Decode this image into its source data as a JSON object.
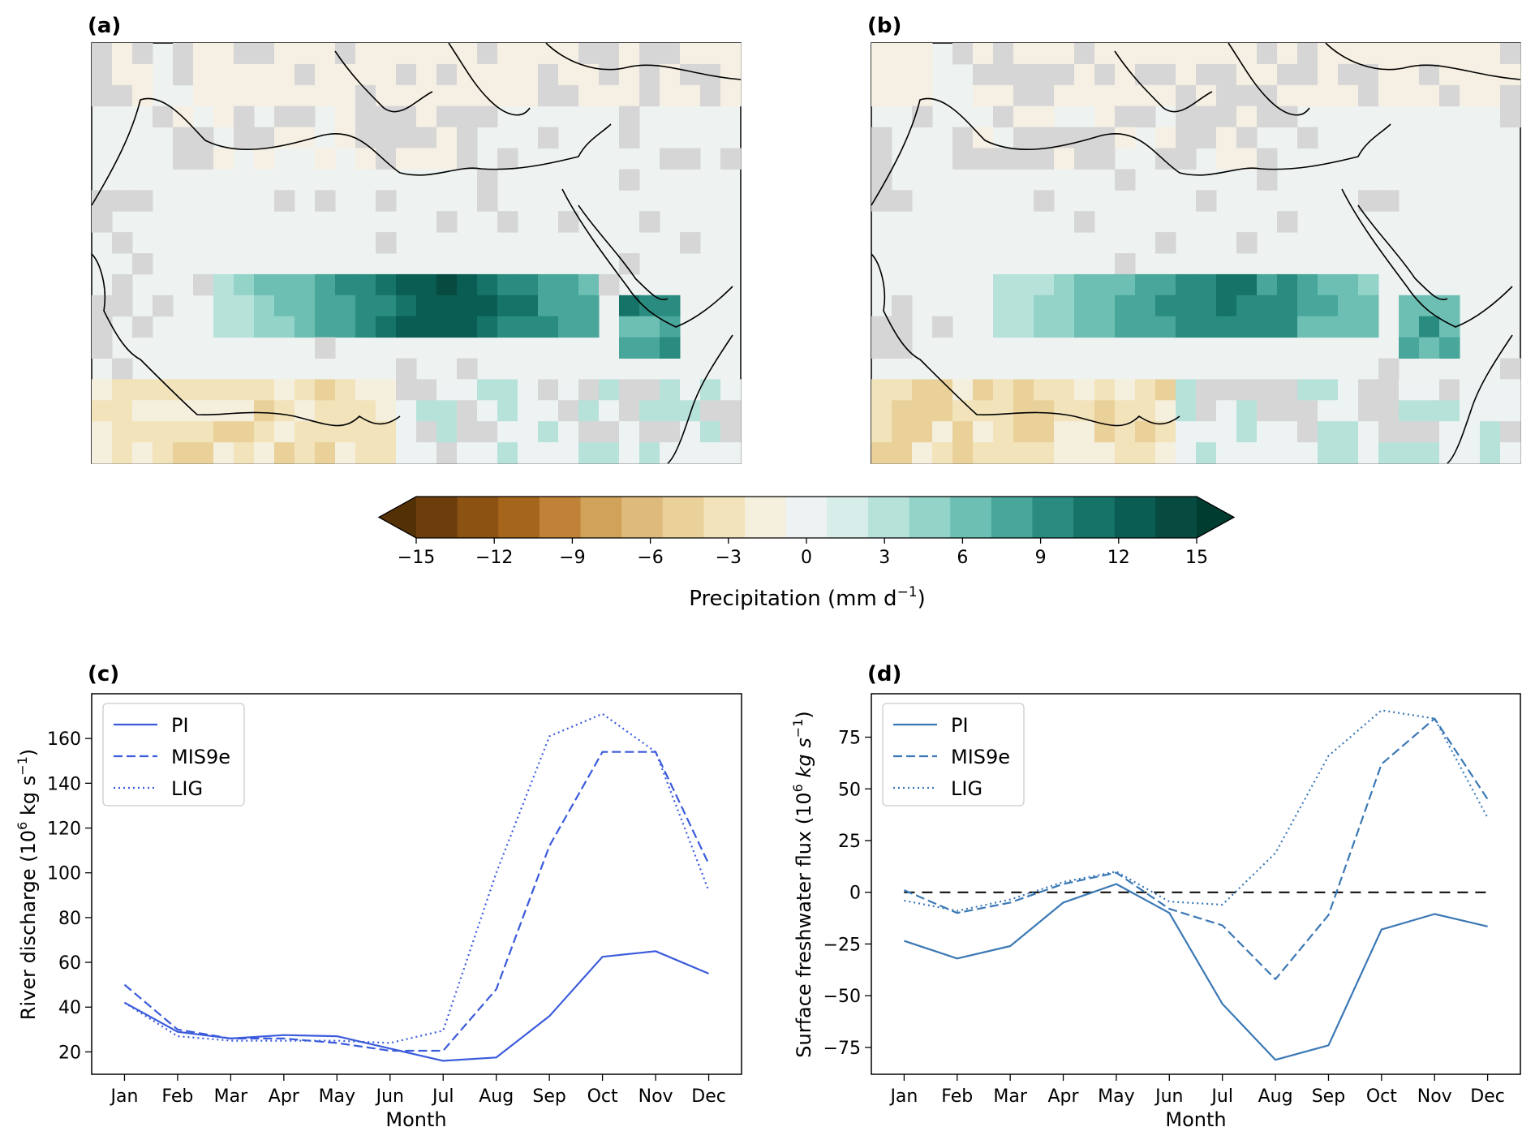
{
  "panels": {
    "a": {
      "label": "(a)"
    },
    "b": {
      "label": "(b)"
    },
    "c": {
      "label": "(c)"
    },
    "d": {
      "label": "(d)"
    }
  },
  "colorbar": {
    "label": "Precipitation (mm d",
    "label_sup": "−1",
    "label_close": ")",
    "ticks": [
      "−15",
      "−12",
      "−9",
      "−6",
      "−3",
      "0",
      "3",
      "6",
      "9",
      "12",
      "15"
    ],
    "colors": [
      "#6b3e0c",
      "#8c5212",
      "#a5661c",
      "#bf8236",
      "#d0a25a",
      "#deba7c",
      "#ead199",
      "#f2e3bb",
      "#f5efde",
      "#edf3f2",
      "#d6ede9",
      "#b7e2da",
      "#93d3c8",
      "#6dbfb3",
      "#48a69a",
      "#2a8b80",
      "#157368",
      "#0a5d52",
      "#064a40"
    ],
    "under_color": "#543005",
    "over_color": "#003c30"
  },
  "chart_data": [
    {
      "panel": "c",
      "type": "line",
      "title": "(c)",
      "xlabel": "Month",
      "ylabel": "River discharge (10",
      "ylabel_sup": "6",
      "ylabel_unit": " kg s",
      "ylabel_unit_sup": "−1",
      "ylabel_close": ")",
      "categories": [
        "Jan",
        "Feb",
        "Mar",
        "Apr",
        "May",
        "Jun",
        "Jul",
        "Aug",
        "Sep",
        "Oct",
        "Nov",
        "Dec"
      ],
      "ylim": [
        10,
        180
      ],
      "yticks": [
        20,
        40,
        60,
        80,
        100,
        120,
        140,
        160
      ],
      "color": "#3b5bdb",
      "series": [
        {
          "name": "PI",
          "style": "solid",
          "values": [
            42,
            29,
            26,
            27.5,
            27,
            21.5,
            16,
            17.5,
            36,
            62.5,
            65,
            55
          ]
        },
        {
          "name": "MIS9e",
          "style": "dashed",
          "values": [
            50,
            30,
            26,
            26,
            24,
            20.5,
            20.5,
            48,
            112,
            154,
            154,
            104
          ]
        },
        {
          "name": "LIG",
          "style": "dotted",
          "values": [
            42,
            27,
            25,
            25,
            25,
            24,
            29.5,
            100,
            161,
            171,
            154,
            92
          ]
        }
      ],
      "legend": "top-left",
      "zero_line": false
    },
    {
      "panel": "d",
      "type": "line",
      "title": "(d)",
      "xlabel": "Month",
      "ylabel": "Surface freshwater flux (10",
      "ylabel_sup": "6",
      "ylabel_unit": " kg s",
      "ylabel_unit_sup": "−1",
      "ylabel_close": ")",
      "categories": [
        "Jan",
        "Feb",
        "Mar",
        "Apr",
        "May",
        "Jun",
        "Jul",
        "Aug",
        "Sep",
        "Oct",
        "Nov",
        "Dec"
      ],
      "ylim": [
        -88,
        96
      ],
      "yticks": [
        -75,
        -50,
        -25,
        0,
        25,
        50,
        75
      ],
      "ytick_labels": [
        "−75",
        "−50",
        "−25",
        "0",
        "25",
        "50",
        "75"
      ],
      "color": "#3a78b5",
      "series": [
        {
          "name": "PI",
          "style": "solid",
          "values": [
            -23.5,
            -32,
            -26,
            -5,
            4,
            -10,
            -54,
            -81,
            -74,
            -18,
            -10.5,
            -16.5
          ]
        },
        {
          "name": "MIS9e",
          "style": "dashed",
          "values": [
            1,
            -10,
            -5,
            4,
            9.5,
            -8,
            -16,
            -42,
            -11,
            62,
            84,
            45
          ]
        },
        {
          "name": "LIG",
          "style": "dotted",
          "values": [
            -4,
            -9,
            -3.5,
            5,
            10,
            -4.5,
            -6,
            19,
            66,
            88,
            84,
            36
          ]
        }
      ],
      "legend": "top-left",
      "zero_line": true
    }
  ]
}
